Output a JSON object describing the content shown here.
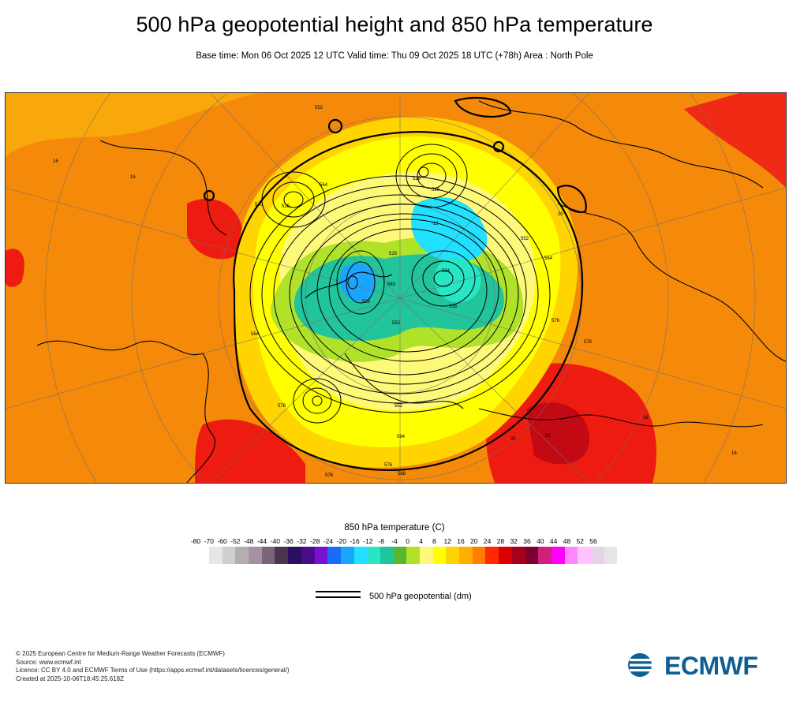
{
  "title": "500 hPa geopotential height and 850 hPa temperature",
  "subtitle": "Base time: Mon 06 Oct 2025 12 UTC Valid time: Thu 09 Oct 2025 18 UTC (+78h) Area : North Pole",
  "map": {
    "contour_labels": [
      "528",
      "528",
      "552",
      "552",
      "564",
      "564",
      "576",
      "576",
      "576",
      "576",
      "540",
      "540",
      "516",
      "516",
      "504",
      "516",
      "528",
      "552",
      "564",
      "576",
      "564",
      "552",
      "540",
      "528",
      "516",
      "528",
      "552",
      "564",
      "552",
      "576",
      "588",
      "576"
    ],
    "point_labels": [
      "16",
      "16",
      "16",
      "16",
      "16",
      "20",
      "20",
      "20",
      "-12",
      "-12"
    ]
  },
  "colorbar": {
    "title": "850 hPa temperature (C)",
    "ticks": [
      "-80",
      "-70",
      "-60",
      "-52",
      "-48",
      "-44",
      "-40",
      "-36",
      "-32",
      "-28",
      "-24",
      "-20",
      "-16",
      "-12",
      "-8",
      "-4",
      "0",
      "4",
      "8",
      "12",
      "16",
      "20",
      "24",
      "28",
      "32",
      "36",
      "40",
      "44",
      "48",
      "52",
      "56"
    ],
    "colors": [
      "#e6e6e6",
      "#cfcfcf",
      "#b0b0b0",
      "#a88fa8",
      "#7a6478",
      "#4a3552",
      "#2a1060",
      "#4b0c8c",
      "#7a10d0",
      "#1a6cf5",
      "#1aa5ff",
      "#22e0ff",
      "#26e6c4",
      "#22c49c",
      "#55b82e",
      "#b0e22a",
      "#fff97a",
      "#ffff00",
      "#ffd400",
      "#ffae00",
      "#ff8000",
      "#ff2a00",
      "#dd0000",
      "#a8001a",
      "#7a0030",
      "#d0207a",
      "#ff00ff",
      "#ff88ff",
      "#ffc4ff",
      "#e8d2e8",
      "#e6e6e6"
    ]
  },
  "legend": {
    "label": "500 hPa geopotential (dm)"
  },
  "footer": {
    "line1": "© 2025 European Centre for Medium-Range Weather Forecasts (ECMWF)",
    "line2": "Source: www.ecmwf.int",
    "line3": "Licence: CC BY 4.0 and ECMWF Terms of Use (https://apps.ecmwf.int/datasets/licences/general/)",
    "line4": "Created at 2025-10-06T18:45:25.618Z"
  },
  "logo": {
    "text": "ECMWF",
    "color": "#0e5f94"
  }
}
